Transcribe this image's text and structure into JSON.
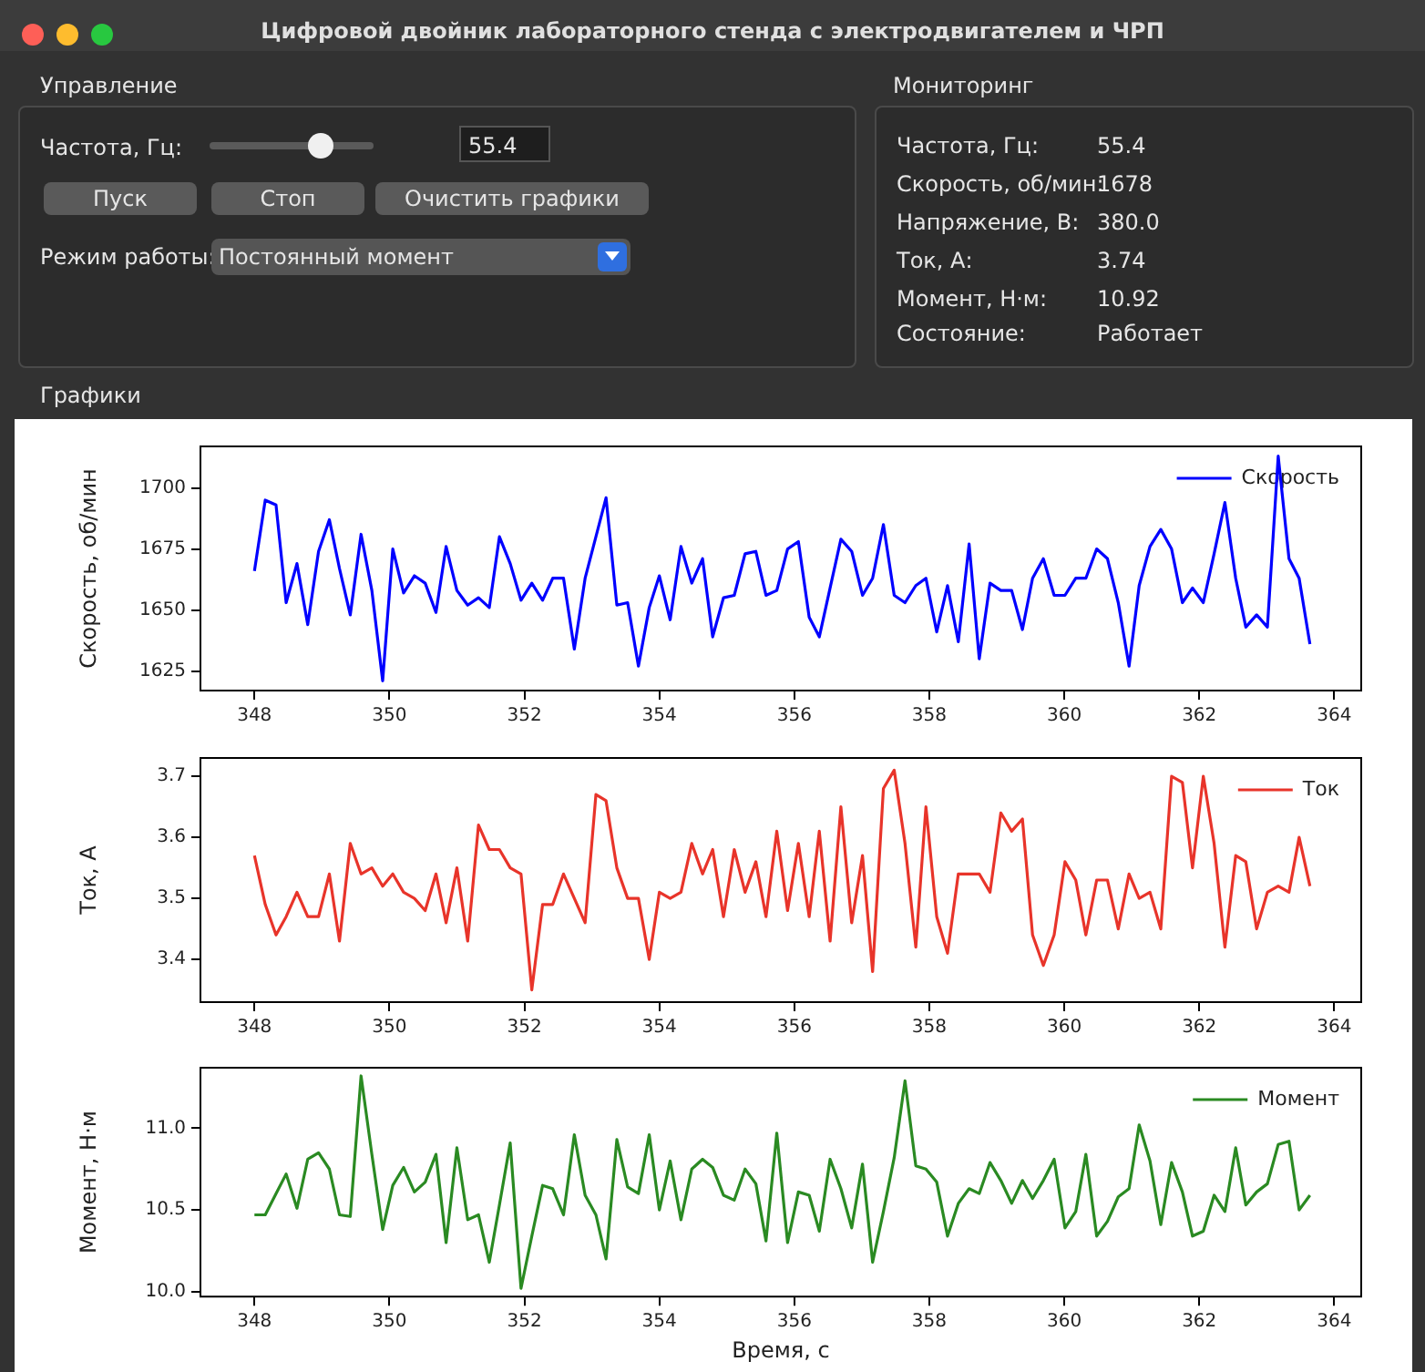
{
  "chart_data": [
    {
      "type": "other",
      "title": "Цифровой двойник лабораторного стенда с электродвигателем и ЧРП",
      "annotations": [
        "Управление",
        "Частота, Гц:",
        "55.4",
        "Пуск",
        "Стоп",
        "Очистить графики",
        "Режим работы:",
        "Постоянный момент",
        "Мониторинг",
        "Частота, Гц:",
        "55.4",
        "Скорость, об/мин:",
        "1678",
        "Напряжение, В:",
        "380.0",
        "Ток, А:",
        "3.74",
        "Момент, Н·м:",
        "10.92",
        "Состояние:",
        "Работает",
        "Графики"
      ]
    },
    {
      "type": "line",
      "ylabel": "Скорость, об/мин",
      "legend": "top right",
      "xlim": [
        347.2,
        364.4
      ],
      "xticks": [
        348,
        350,
        352,
        354,
        356,
        358,
        360,
        362,
        364
      ],
      "ylim": [
        1617,
        1717
      ],
      "yticks": [
        1625,
        1650,
        1675,
        1700
      ],
      "x": [
        348,
        348.16,
        348.32,
        348.47,
        348.63,
        348.79,
        348.95,
        349.11,
        349.26,
        349.42,
        349.58,
        349.74,
        349.9,
        350.05,
        350.21,
        350.37,
        350.53,
        350.69,
        350.84,
        351,
        351.16,
        351.32,
        351.48,
        351.63,
        351.79,
        351.95,
        352.11,
        352.27,
        352.42,
        352.58,
        352.74,
        352.9,
        353.06,
        353.21,
        353.37,
        353.53,
        353.69,
        353.85,
        354,
        354.16,
        354.32,
        354.48,
        354.64,
        354.79,
        354.95,
        355.11,
        355.27,
        355.43,
        355.58,
        355.74,
        355.9,
        356.06,
        356.22,
        356.37,
        356.53,
        356.69,
        356.85,
        357.01,
        357.16,
        357.32,
        357.48,
        357.64,
        357.8,
        357.95,
        358.11,
        358.27,
        358.43,
        358.59,
        358.74,
        358.9,
        359.06,
        359.22,
        359.38,
        359.53,
        359.69,
        359.85,
        360.01,
        360.17,
        360.32,
        360.48,
        360.64,
        360.8,
        360.96,
        361.11,
        361.27,
        361.43,
        361.59,
        361.75,
        361.9,
        362.06,
        362.22,
        362.38,
        362.54,
        362.69,
        362.85,
        363.01,
        363.17,
        363.33,
        363.48,
        363.64
      ],
      "series": [
        {
          "name": "Скорость",
          "color": "#0000ff",
          "values": [
            1666,
            1695,
            1693,
            1653,
            1669,
            1644,
            1674,
            1687,
            1667,
            1648,
            1681,
            1658,
            1621,
            1675,
            1657,
            1664,
            1661,
            1649,
            1676,
            1658,
            1652,
            1655,
            1651,
            1680,
            1669,
            1654,
            1661,
            1654,
            1663,
            1663,
            1634,
            1663,
            1680,
            1696,
            1652,
            1653,
            1627,
            1651,
            1664,
            1646,
            1676,
            1661,
            1671,
            1639,
            1655,
            1656,
            1673,
            1674,
            1656,
            1658,
            1675,
            1678,
            1647,
            1639,
            1659,
            1679,
            1674,
            1656,
            1663,
            1685,
            1656,
            1653,
            1660,
            1663,
            1641,
            1660,
            1637,
            1677,
            1630,
            1661,
            1658,
            1658,
            1642,
            1663,
            1671,
            1656,
            1656,
            1663,
            1663,
            1675,
            1671,
            1653,
            1627,
            1660,
            1676,
            1683,
            1675,
            1653,
            1659,
            1653,
            1673,
            1694,
            1663,
            1643,
            1648,
            1643,
            1713,
            1671,
            1663,
            1636
          ]
        }
      ]
    },
    {
      "type": "line",
      "ylabel": "Ток, А",
      "legend": "top right",
      "xlim": [
        347.2,
        364.4
      ],
      "xticks": [
        348,
        350,
        352,
        354,
        356,
        358,
        360,
        362,
        364
      ],
      "ylim": [
        3.33,
        3.73
      ],
      "yticks": [
        3.4,
        3.5,
        3.6,
        3.7
      ],
      "x": [
        348,
        348.16,
        348.32,
        348.47,
        348.63,
        348.79,
        348.95,
        349.11,
        349.26,
        349.42,
        349.58,
        349.74,
        349.9,
        350.05,
        350.21,
        350.37,
        350.53,
        350.69,
        350.84,
        351,
        351.16,
        351.32,
        351.48,
        351.63,
        351.79,
        351.95,
        352.11,
        352.27,
        352.42,
        352.58,
        352.74,
        352.9,
        353.06,
        353.21,
        353.37,
        353.53,
        353.69,
        353.85,
        354,
        354.16,
        354.32,
        354.48,
        354.64,
        354.79,
        354.95,
        355.11,
        355.27,
        355.43,
        355.58,
        355.74,
        355.9,
        356.06,
        356.22,
        356.37,
        356.53,
        356.69,
        356.85,
        357.01,
        357.16,
        357.32,
        357.48,
        357.64,
        357.8,
        357.95,
        358.11,
        358.27,
        358.43,
        358.59,
        358.74,
        358.9,
        359.06,
        359.22,
        359.38,
        359.53,
        359.69,
        359.85,
        360.01,
        360.17,
        360.32,
        360.48,
        360.64,
        360.8,
        360.96,
        361.11,
        361.27,
        361.43,
        361.59,
        361.75,
        361.9,
        362.06,
        362.22,
        362.38,
        362.54,
        362.69,
        362.85,
        363.01,
        363.17,
        363.33,
        363.48,
        363.64
      ],
      "series": [
        {
          "name": "Ток",
          "color": "#e8342a",
          "values": [
            3.57,
            3.49,
            3.44,
            3.47,
            3.51,
            3.47,
            3.47,
            3.54,
            3.43,
            3.59,
            3.54,
            3.55,
            3.52,
            3.54,
            3.51,
            3.5,
            3.48,
            3.54,
            3.46,
            3.55,
            3.43,
            3.62,
            3.58,
            3.58,
            3.55,
            3.54,
            3.35,
            3.49,
            3.49,
            3.54,
            3.5,
            3.46,
            3.67,
            3.66,
            3.55,
            3.5,
            3.5,
            3.4,
            3.51,
            3.5,
            3.51,
            3.59,
            3.54,
            3.58,
            3.47,
            3.58,
            3.51,
            3.56,
            3.47,
            3.61,
            3.48,
            3.59,
            3.47,
            3.61,
            3.43,
            3.65,
            3.46,
            3.57,
            3.38,
            3.68,
            3.71,
            3.59,
            3.42,
            3.65,
            3.47,
            3.41,
            3.54,
            3.54,
            3.54,
            3.51,
            3.64,
            3.61,
            3.63,
            3.44,
            3.39,
            3.44,
            3.56,
            3.53,
            3.44,
            3.53,
            3.53,
            3.45,
            3.54,
            3.5,
            3.51,
            3.45,
            3.7,
            3.69,
            3.55,
            3.7,
            3.59,
            3.42,
            3.57,
            3.56,
            3.45,
            3.51,
            3.52,
            3.51,
            3.6,
            3.52
          ]
        }
      ]
    },
    {
      "type": "line",
      "ylabel": "Момент, Н·м",
      "xlabel": "Время, с",
      "legend": "top right",
      "xlim": [
        347.2,
        364.4
      ],
      "xticks": [
        348,
        350,
        352,
        354,
        356,
        358,
        360,
        362,
        364
      ],
      "ylim": [
        9.97,
        11.37
      ],
      "yticks": [
        {
          "value": 10,
          "label": "10.0"
        },
        {
          "value": 10.5,
          "label": "10.5"
        },
        {
          "value": 11,
          "label": "11.0"
        }
      ],
      "x": [
        348,
        348.16,
        348.32,
        348.47,
        348.63,
        348.79,
        348.95,
        349.11,
        349.26,
        349.42,
        349.58,
        349.74,
        349.9,
        350.05,
        350.21,
        350.37,
        350.53,
        350.69,
        350.84,
        351,
        351.16,
        351.32,
        351.48,
        351.63,
        351.79,
        351.95,
        352.11,
        352.27,
        352.42,
        352.58,
        352.74,
        352.9,
        353.06,
        353.21,
        353.37,
        353.53,
        353.69,
        353.85,
        354,
        354.16,
        354.32,
        354.48,
        354.64,
        354.79,
        354.95,
        355.11,
        355.27,
        355.43,
        355.58,
        355.74,
        355.9,
        356.06,
        356.22,
        356.37,
        356.53,
        356.69,
        356.85,
        357.01,
        357.16,
        357.32,
        357.48,
        357.64,
        357.8,
        357.95,
        358.11,
        358.27,
        358.43,
        358.59,
        358.74,
        358.9,
        359.06,
        359.22,
        359.38,
        359.53,
        359.69,
        359.85,
        360.01,
        360.17,
        360.32,
        360.48,
        360.64,
        360.8,
        360.96,
        361.11,
        361.27,
        361.43,
        361.59,
        361.75,
        361.9,
        362.06,
        362.22,
        362.38,
        362.54,
        362.69,
        362.85,
        363.01,
        363.17,
        363.33,
        363.48,
        363.64
      ],
      "series": [
        {
          "name": "Момент",
          "color": "#2a8a22",
          "values": [
            10.47,
            10.47,
            10.6,
            10.72,
            10.51,
            10.81,
            10.85,
            10.75,
            10.47,
            10.46,
            11.32,
            10.84,
            10.38,
            10.65,
            10.76,
            10.61,
            10.67,
            10.84,
            10.3,
            10.88,
            10.44,
            10.47,
            10.18,
            10.53,
            10.91,
            10.02,
            10.34,
            10.65,
            10.63,
            10.47,
            10.96,
            10.59,
            10.47,
            10.2,
            10.93,
            10.64,
            10.6,
            10.96,
            10.5,
            10.8,
            10.44,
            10.75,
            10.81,
            10.76,
            10.59,
            10.56,
            10.75,
            10.66,
            10.31,
            10.97,
            10.3,
            10.61,
            10.59,
            10.37,
            10.81,
            10.63,
            10.39,
            10.78,
            10.18,
            10.49,
            10.82,
            11.29,
            10.77,
            10.75,
            10.67,
            10.34,
            10.54,
            10.63,
            10.6,
            10.79,
            10.68,
            10.54,
            10.68,
            10.57,
            10.68,
            10.81,
            10.39,
            10.49,
            10.84,
            10.34,
            10.43,
            10.58,
            10.63,
            11.02,
            10.8,
            10.41,
            10.79,
            10.61,
            10.34,
            10.37,
            10.59,
            10.49,
            10.88,
            10.53,
            10.61,
            10.66,
            10.9,
            10.92,
            10.5,
            10.59
          ]
        }
      ]
    }
  ]
}
